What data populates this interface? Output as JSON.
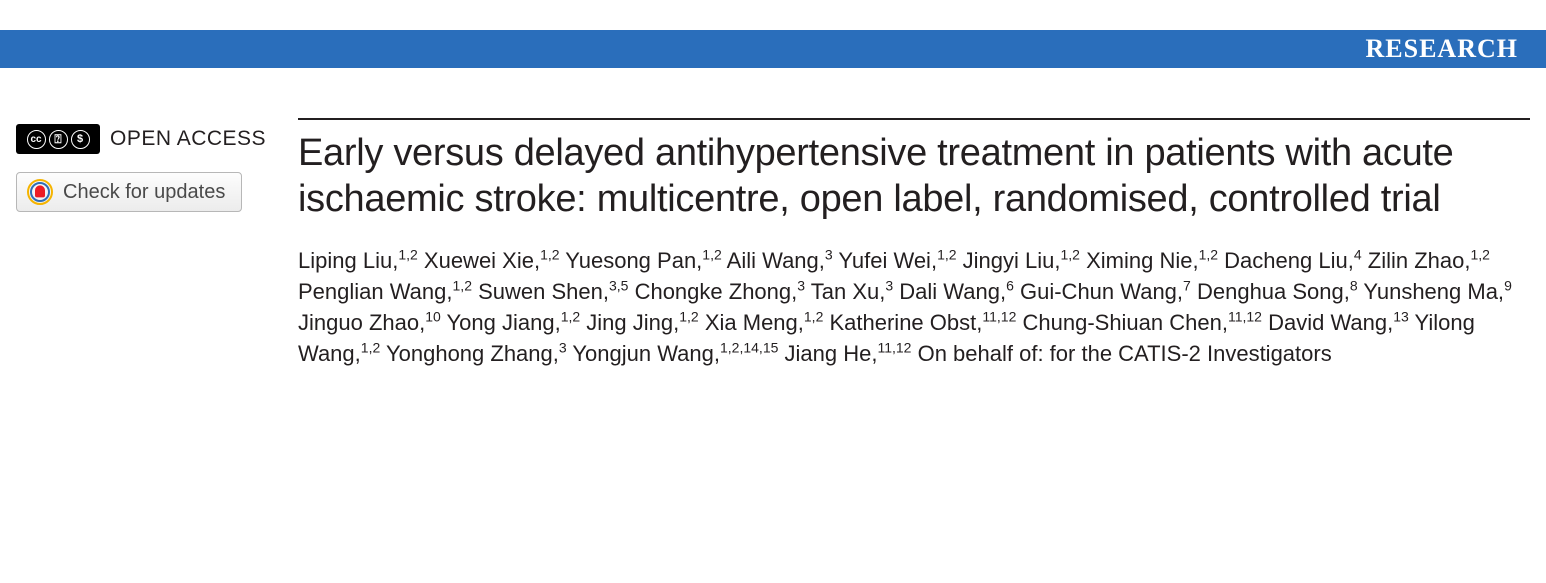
{
  "banner": {
    "label": "RESEARCH",
    "background_color": "#2a6ebb",
    "text_color": "#ffffff"
  },
  "open_access": {
    "label": "OPEN ACCESS",
    "badge_bg": "#000000",
    "badge_fg": "#ffffff"
  },
  "updates_button": {
    "label": "Check for updates",
    "ring_outer_color": "#f5b400",
    "ring_inner_color": "#2f6fb7",
    "dot_color": "#ed1c24"
  },
  "article": {
    "title": "Early versus delayed antihypertensive treatment in patients with acute ischaemic stroke: multicentre, open label, randomised, controlled trial"
  },
  "authors": [
    {
      "name": "Liping Liu",
      "aff": "1,2"
    },
    {
      "name": "Xuewei Xie",
      "aff": "1,2"
    },
    {
      "name": "Yuesong Pan",
      "aff": "1,2"
    },
    {
      "name": "Aili Wang",
      "aff": "3"
    },
    {
      "name": "Yufei Wei",
      "aff": "1,2"
    },
    {
      "name": "Jingyi Liu",
      "aff": "1,2"
    },
    {
      "name": "Ximing Nie",
      "aff": "1,2"
    },
    {
      "name": "Dacheng Liu",
      "aff": "4"
    },
    {
      "name": "Zilin Zhao",
      "aff": "1,2"
    },
    {
      "name": "Penglian Wang",
      "aff": "1,2"
    },
    {
      "name": "Suwen Shen",
      "aff": "3,5"
    },
    {
      "name": "Chongke Zhong",
      "aff": "3"
    },
    {
      "name": "Tan Xu",
      "aff": "3"
    },
    {
      "name": "Dali Wang",
      "aff": "6"
    },
    {
      "name": "Gui-Chun Wang",
      "aff": "7"
    },
    {
      "name": "Denghua Song",
      "aff": "8"
    },
    {
      "name": "Yunsheng Ma",
      "aff": "9"
    },
    {
      "name": "Jinguo Zhao",
      "aff": "10"
    },
    {
      "name": "Yong Jiang",
      "aff": "1,2"
    },
    {
      "name": "Jing Jing",
      "aff": "1,2"
    },
    {
      "name": "Xia Meng",
      "aff": "1,2"
    },
    {
      "name": "Katherine Obst",
      "aff": "11,12"
    },
    {
      "name": "Chung-Shiuan Chen",
      "aff": "11,12"
    },
    {
      "name": "David Wang",
      "aff": "13"
    },
    {
      "name": "Yilong Wang",
      "aff": "1,2"
    },
    {
      "name": "Yonghong Zhang",
      "aff": "3"
    },
    {
      "name": "Yongjun Wang",
      "aff": "1,2,14,15"
    },
    {
      "name": "Jiang He",
      "aff": "11,12"
    }
  ],
  "authors_suffix": "On behalf of: for the CATIS-2 Investigators"
}
